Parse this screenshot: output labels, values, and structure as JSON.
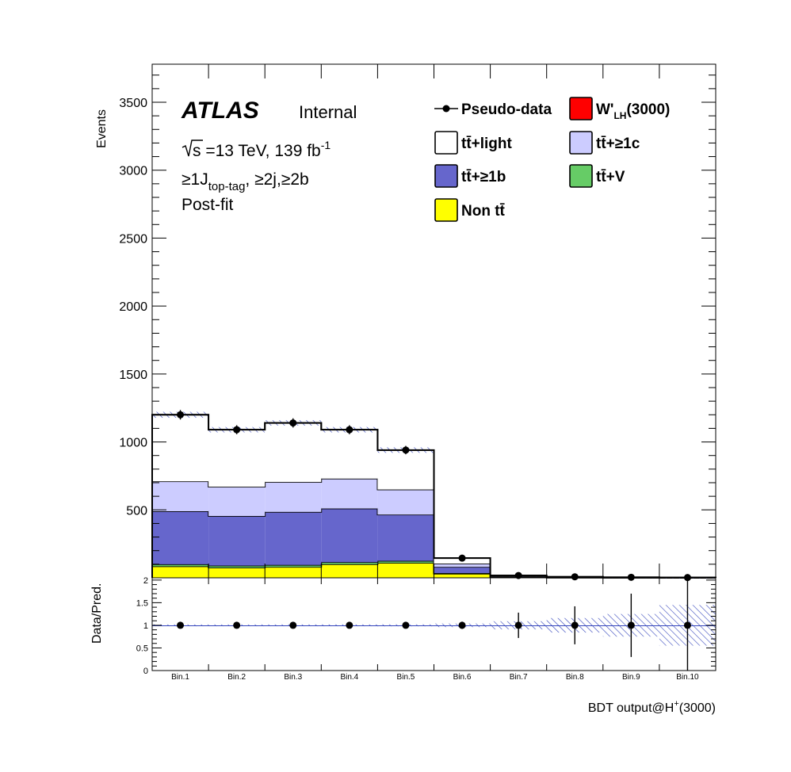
{
  "figure": {
    "experiment": "ATLAS",
    "status": "Internal",
    "sqrt_s": "s",
    "energy_lumi": " =13 TeV, 139 fb",
    "lumi_exp": "-1",
    "selection_a": "≥1J",
    "selection_sub": "top-tag",
    "selection_b": ", ≥2j,≥2b",
    "fit_label": "Post-fit"
  },
  "colors": {
    "ttlight": "#ffffff",
    "ttc": "#ccccff",
    "ttb": "#6666cc",
    "ttv": "#66cc66",
    "nontt": "#ffff00",
    "signal": "#ff0000",
    "uncertainty_hatch": "#3344bb"
  },
  "legend": [
    {
      "key": "data",
      "label": "Pseudo-data"
    },
    {
      "key": "signal",
      "label": "W'",
      "sub": "LH",
      "suffix": "(3000)"
    },
    {
      "key": "ttlight",
      "label": "tt̄+light"
    },
    {
      "key": "ttc",
      "label": "tt̄+≥1c"
    },
    {
      "key": "ttb",
      "label": "tt̄+≥1b"
    },
    {
      "key": "ttv",
      "label": "tt̄+V"
    },
    {
      "key": "nontt",
      "label": "Non tt̄"
    }
  ],
  "chart_data": [
    {
      "type": "bar",
      "stacked": true,
      "panel": "main",
      "categories": [
        "Bin.1",
        "Bin.2",
        "Bin.3",
        "Bin.4",
        "Bin.5",
        "Bin.6",
        "Bin.7",
        "Bin.8",
        "Bin.9",
        "Bin.10"
      ],
      "ylabel": "Events",
      "ylim": [
        0,
        3780
      ],
      "yticks": [
        500,
        1000,
        1500,
        2000,
        2500,
        3000,
        3500
      ],
      "series": [
        {
          "key": "nontt",
          "values": [
            85,
            75,
            80,
            100,
            110,
            30,
            3,
            1,
            0.5,
            0.3
          ]
        },
        {
          "key": "ttv",
          "values": [
            15,
            15,
            15,
            15,
            15,
            5,
            1,
            0.5,
            0.2,
            0.1
          ]
        },
        {
          "key": "ttb",
          "values": [
            390,
            365,
            390,
            395,
            340,
            45,
            4,
            2,
            1,
            0.5
          ]
        },
        {
          "key": "ttc",
          "values": [
            220,
            215,
            220,
            220,
            185,
            25,
            3,
            1,
            0.8,
            0.3
          ]
        },
        {
          "key": "ttlight",
          "values": [
            490,
            420,
            435,
            360,
            290,
            40,
            6,
            3,
            1.5,
            0.8
          ]
        }
      ],
      "total_prediction": [
        1200,
        1090,
        1140,
        1090,
        940,
        145,
        17,
        7.5,
        4,
        2
      ],
      "total_uncertainty": [
        22,
        20,
        20,
        20,
        20,
        5,
        1.5,
        1.2,
        1,
        1
      ],
      "pseudo_data": [
        1200,
        1090,
        1140,
        1090,
        940,
        145,
        17,
        7.5,
        4,
        2
      ],
      "pseudo_data_error": [
        35,
        33,
        34,
        33,
        31,
        12,
        4,
        3,
        2,
        1.4
      ]
    },
    {
      "type": "scatter",
      "panel": "ratio",
      "categories": [
        "Bin.1",
        "Bin.2",
        "Bin.3",
        "Bin.4",
        "Bin.5",
        "Bin.6",
        "Bin.7",
        "Bin.8",
        "Bin.9",
        "Bin.10"
      ],
      "xlabel": "BDT output@H",
      "xlabel_sup": "+",
      "xlabel_suffix": "(3000)",
      "ylabel": "Data/Pred.",
      "ylim": [
        0,
        2.05
      ],
      "yticks": [
        "0",
        "0.5",
        "1",
        "1.5",
        "2"
      ],
      "ytick_values": [
        0,
        0.5,
        1,
        1.5,
        2
      ],
      "values": [
        1,
        1,
        1,
        1,
        1,
        1,
        1,
        1,
        1,
        1
      ],
      "errors": [
        0.03,
        0.03,
        0.03,
        0.03,
        0.035,
        0.08,
        0.28,
        0.42,
        0.7,
        1.0
      ],
      "band": [
        0.02,
        0.02,
        0.02,
        0.02,
        0.022,
        0.04,
        0.09,
        0.16,
        0.25,
        0.45
      ]
    }
  ]
}
